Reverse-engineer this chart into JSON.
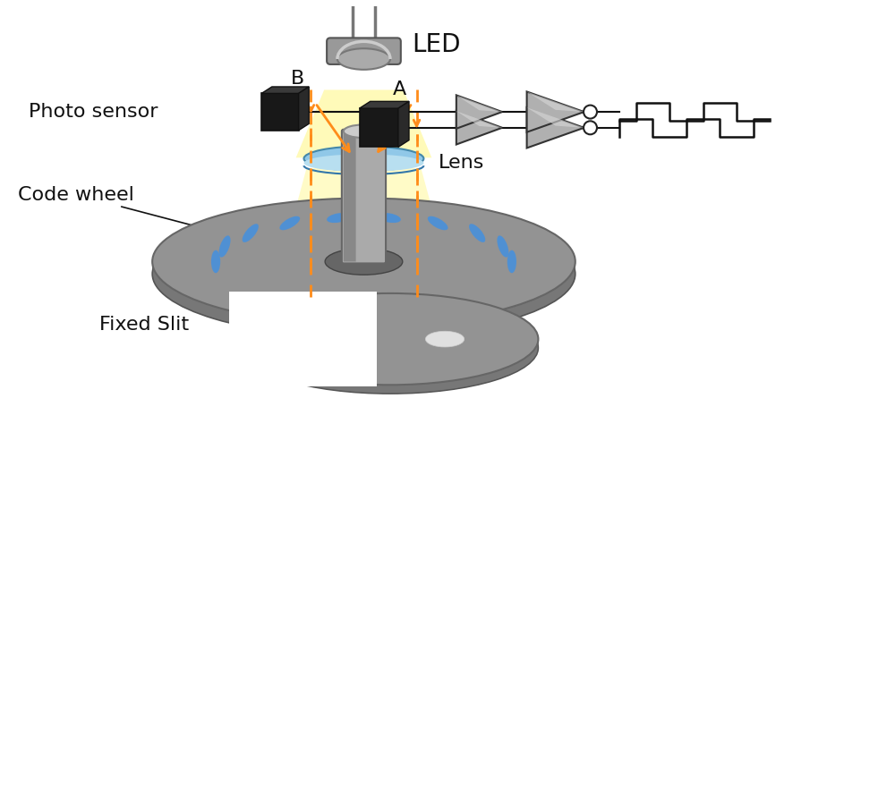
{
  "bg": "#ffffff",
  "orange": "#FF8C1A",
  "blue_slot": "#4A90D9",
  "yellow_beam": "#FFFAB0",
  "lens_blue": "#A8D8F0",
  "text_color": "#111111",
  "label_LED": "LED",
  "label_Lens": "Lens",
  "label_cw": "Code wheel",
  "label_fs": "Fixed Slit",
  "label_ps": "Photo sensor",
  "label_A": "A",
  "label_B": "B",
  "font_size": 16
}
